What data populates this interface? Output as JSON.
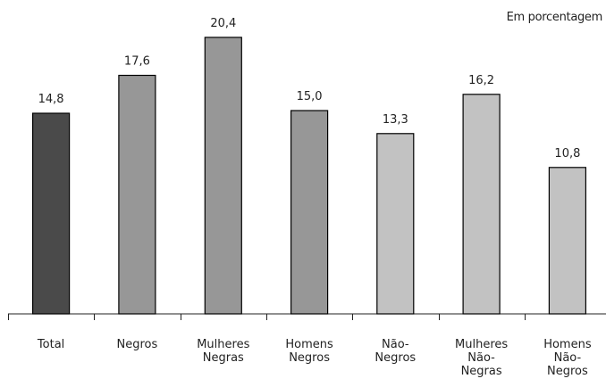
{
  "unit_note": "Em porcentagem",
  "chart_data": {
    "type": "bar",
    "title": "",
    "xlabel": "",
    "ylabel": "",
    "ylim": [
      0,
      22
    ],
    "grid": false,
    "categories": [
      [
        "Total"
      ],
      [
        "Negros"
      ],
      [
        "Mulheres",
        "Negras"
      ],
      [
        "Homens",
        "Negros"
      ],
      [
        "Não-",
        "Negros"
      ],
      [
        "Mulheres",
        "Não-",
        "Negras"
      ],
      [
        "Homens",
        "Não-",
        "Negros"
      ]
    ],
    "values": [
      14.8,
      17.6,
      20.4,
      15.0,
      13.3,
      16.2,
      10.8
    ],
    "value_labels": [
      "14,8",
      "17,6",
      "20,4",
      "15,0",
      "13,3",
      "16,2",
      "10,8"
    ],
    "colors": [
      "#4a4a4a",
      "#979797",
      "#979797",
      "#979797",
      "#c2c2c2",
      "#c2c2c2",
      "#c2c2c2"
    ]
  }
}
